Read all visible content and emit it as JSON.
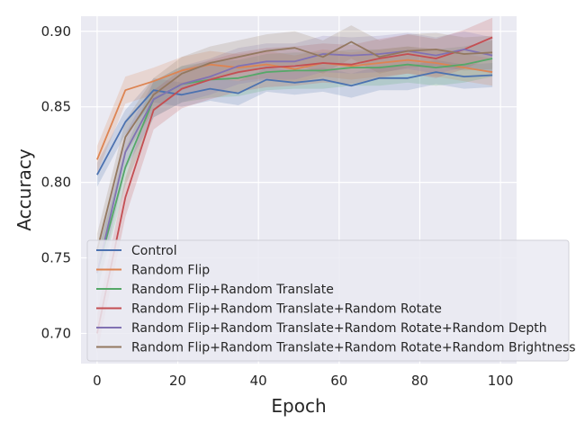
{
  "chart_data": {
    "type": "line",
    "title": "",
    "xlabel": "Epoch",
    "ylabel": "Accuracy",
    "xlim": [
      -4,
      104
    ],
    "ylim": [
      0.68,
      0.91
    ],
    "xticks": [
      0,
      20,
      40,
      60,
      80,
      100
    ],
    "yticks": [
      0.7,
      0.75,
      0.8,
      0.85,
      0.9
    ],
    "xtick_labels": [
      "0",
      "20",
      "40",
      "60",
      "80",
      "100"
    ],
    "ytick_labels": [
      "0.70",
      "0.75",
      "0.80",
      "0.85",
      "0.90"
    ],
    "grid": true,
    "legend_position": "lower-left",
    "x": [
      0,
      7,
      14,
      21,
      28,
      35,
      42,
      49,
      56,
      63,
      70,
      77,
      84,
      91,
      98
    ],
    "series": [
      {
        "name": "Control",
        "color": "#4c72b0",
        "values": [
          0.805,
          0.84,
          0.861,
          0.858,
          0.862,
          0.859,
          0.868,
          0.866,
          0.868,
          0.864,
          0.869,
          0.869,
          0.873,
          0.87,
          0.871
        ],
        "band": 0.008
      },
      {
        "name": "Random Flip",
        "color": "#dd8452",
        "values": [
          0.815,
          0.861,
          0.867,
          0.874,
          0.878,
          0.876,
          0.878,
          0.875,
          0.879,
          0.877,
          0.879,
          0.881,
          0.879,
          0.876,
          0.873
        ],
        "band": 0.009
      },
      {
        "name": "Random Flip+Random Translate",
        "color": "#55a868",
        "values": [
          0.74,
          0.81,
          0.855,
          0.865,
          0.868,
          0.869,
          0.873,
          0.874,
          0.874,
          0.876,
          0.876,
          0.878,
          0.876,
          0.878,
          0.882
        ],
        "band": 0.012
      },
      {
        "name": "Random Flip+Random Translate+Random Rotate",
        "color": "#c44e52",
        "values": [
          0.7,
          0.79,
          0.848,
          0.862,
          0.868,
          0.873,
          0.876,
          0.877,
          0.879,
          0.878,
          0.882,
          0.885,
          0.882,
          0.888,
          0.896
        ],
        "band": 0.013
      },
      {
        "name": "Random Flip+Random Translate+Random Rotate+Random Depth",
        "color": "#8172b3",
        "values": [
          0.74,
          0.82,
          0.855,
          0.865,
          0.87,
          0.877,
          0.88,
          0.88,
          0.885,
          0.884,
          0.885,
          0.887,
          0.884,
          0.888,
          0.884
        ],
        "band": 0.012
      },
      {
        "name": "Random Flip+Random Translate+Random Rotate+Random Brightness",
        "color": "#937860",
        "values": [
          0.755,
          0.83,
          0.858,
          0.872,
          0.879,
          0.883,
          0.887,
          0.889,
          0.883,
          0.893,
          0.883,
          0.887,
          0.888,
          0.885,
          0.886
        ],
        "band": 0.011
      }
    ]
  }
}
